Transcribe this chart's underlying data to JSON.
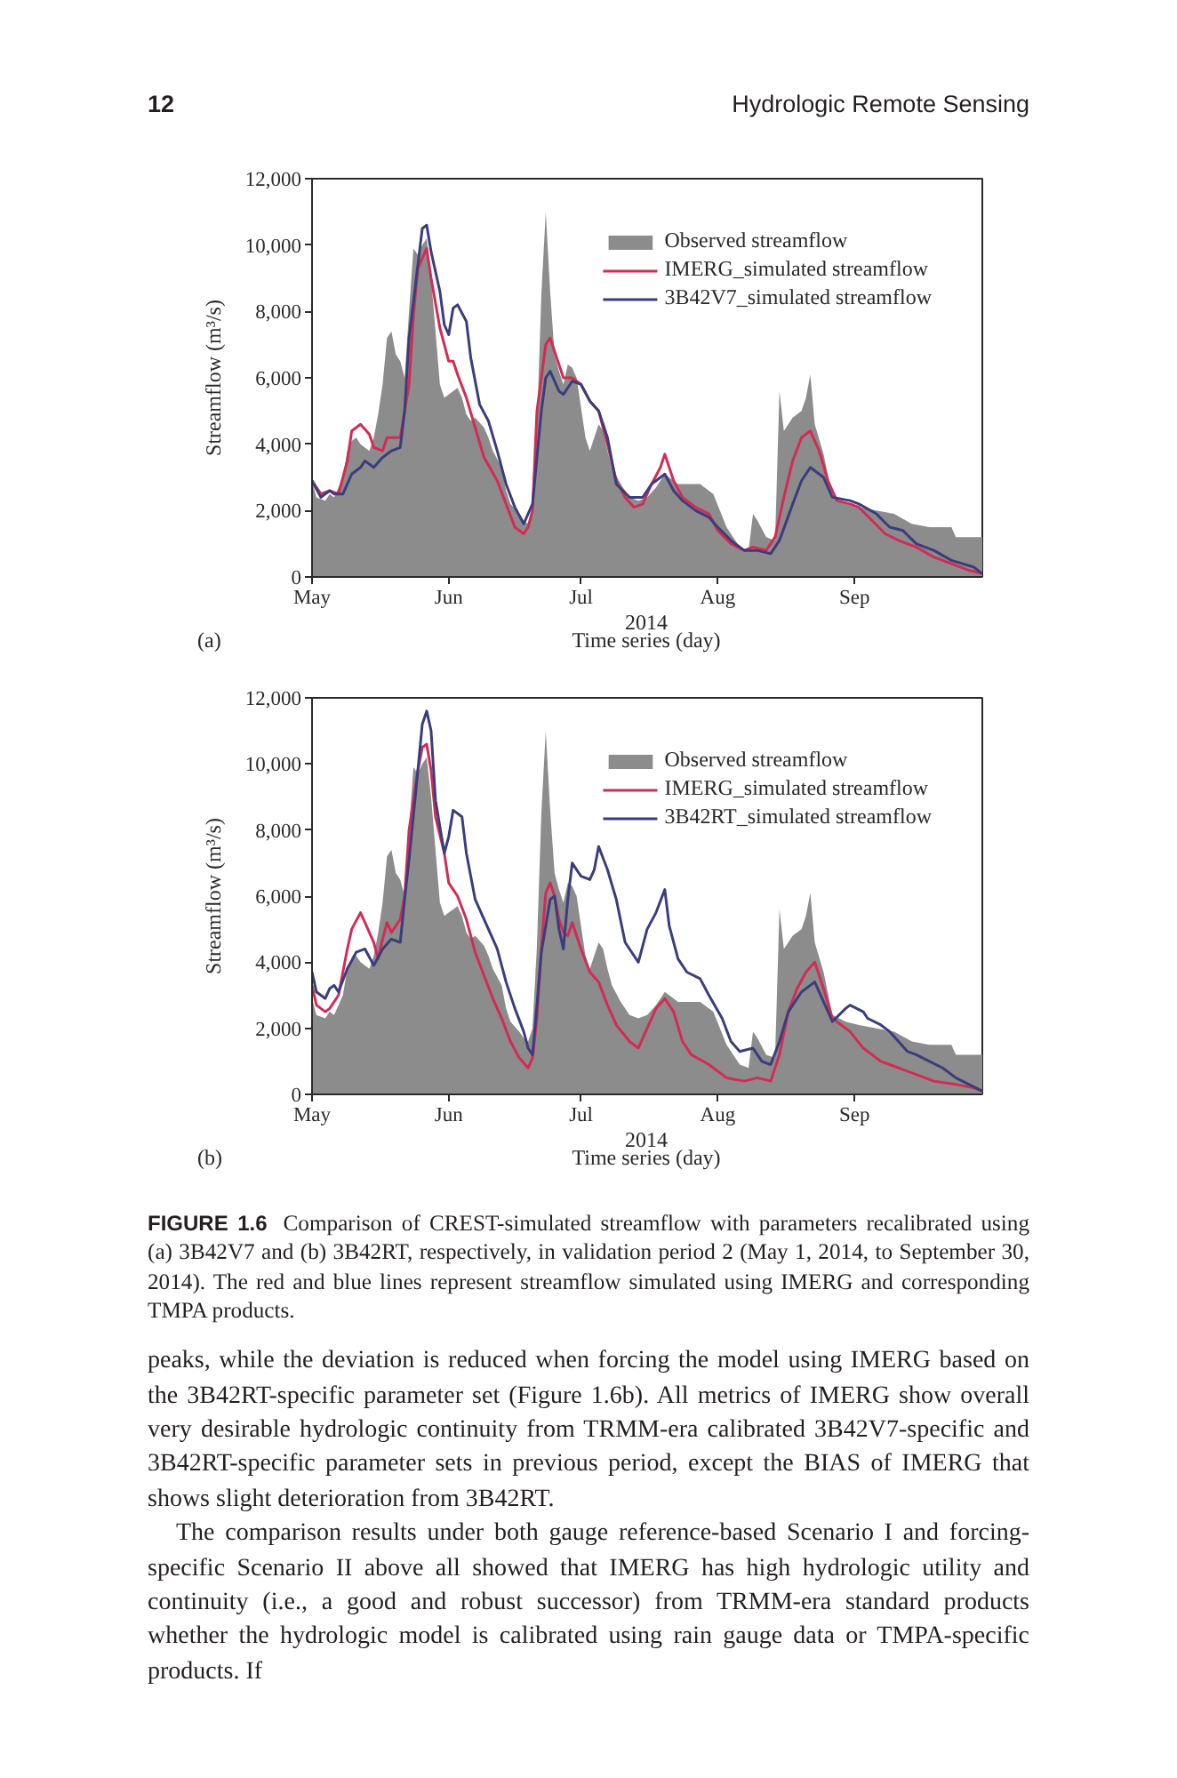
{
  "chart_data": [
    {
      "type": "other",
      "title": "12",
      "subtitle": "Hydrologic Remote Sensing"
    },
    {
      "type": "area",
      "title": "(a)",
      "xlabel": "Time series (day)",
      "ylabel": "Streamflow (m³/s)",
      "annotations": [
        "2014"
      ],
      "xlim": [
        "2014-05-01",
        "2014-09-30"
      ],
      "xticks": [
        {
          "value": "2014-05-01",
          "label": "May"
        },
        {
          "value": "2014-06-01",
          "label": "Jun"
        },
        {
          "value": "2014-07-01",
          "label": "Jul"
        },
        {
          "value": "2014-08-01",
          "label": "Aug"
        },
        {
          "value": "2014-09-01",
          "label": "Sep"
        }
      ],
      "ylim": [
        0,
        12000
      ],
      "yticks": [
        0,
        {
          "value": 2000,
          "label": "2,000"
        },
        {
          "value": 4000,
          "label": "4,000"
        },
        {
          "value": 6000,
          "label": "6,000"
        },
        {
          "value": 8000,
          "label": "8,000"
        },
        {
          "value": 10000,
          "label": "10,000"
        },
        {
          "value": 12000,
          "label": "12,000"
        }
      ],
      "legend": "top right",
      "series": [
        {
          "name": "Observed streamflow",
          "type": "area",
          "color": "#8c8c8c",
          "x": [
            "2014-05-01",
            "2014-05-02",
            "2014-05-04",
            "2014-05-05",
            "2014-05-06",
            "2014-05-08",
            "2014-05-09",
            "2014-05-10",
            "2014-05-11",
            "2014-05-12",
            "2014-05-14",
            "2014-05-15",
            "2014-05-16",
            "2014-05-17",
            "2014-05-18",
            "2014-05-19",
            "2014-05-20",
            "2014-05-21",
            "2014-05-22",
            "2014-05-23",
            "2014-05-24",
            "2014-05-25",
            "2014-05-26",
            "2014-05-27",
            "2014-05-28",
            "2014-05-29",
            "2014-05-30",
            "2014-05-31",
            "2014-06-01",
            "2014-06-03",
            "2014-06-04",
            "2014-06-05",
            "2014-06-06",
            "2014-06-07",
            "2014-06-09",
            "2014-06-10",
            "2014-06-11",
            "2014-06-13",
            "2014-06-14",
            "2014-06-15",
            "2014-06-17",
            "2014-06-18",
            "2014-06-19",
            "2014-06-20",
            "2014-06-21",
            "2014-06-22",
            "2014-06-23",
            "2014-06-24",
            "2014-06-25",
            "2014-06-26",
            "2014-06-27",
            "2014-06-28",
            "2014-06-29",
            "2014-06-30",
            "2014-07-01",
            "2014-07-02",
            "2014-07-03",
            "2014-07-04",
            "2014-07-05",
            "2014-07-06",
            "2014-07-07",
            "2014-07-08",
            "2014-07-10",
            "2014-07-12",
            "2014-07-14",
            "2014-07-16",
            "2014-07-18",
            "2014-07-20",
            "2014-07-23",
            "2014-07-26",
            "2014-07-28",
            "2014-07-31",
            "2014-08-03",
            "2014-08-06",
            "2014-08-08",
            "2014-08-09",
            "2014-08-10",
            "2014-08-12",
            "2014-08-14",
            "2014-08-15",
            "2014-08-16",
            "2014-08-18",
            "2014-08-20",
            "2014-08-21",
            "2014-08-22",
            "2014-08-23",
            "2014-08-25",
            "2014-08-27",
            "2014-08-30",
            "2014-09-02",
            "2014-09-06",
            "2014-09-10",
            "2014-09-14",
            "2014-09-18",
            "2014-09-23",
            "2014-09-24",
            "2014-09-30"
          ],
          "values": [
            2900,
            2400,
            2300,
            2500,
            2400,
            3000,
            3800,
            4100,
            4200,
            4000,
            3800,
            4200,
            4900,
            5800,
            7200,
            7400,
            6700,
            6500,
            6000,
            8000,
            9900,
            9700,
            10000,
            10200,
            9000,
            7400,
            5800,
            5400,
            5500,
            5700,
            5400,
            4900,
            4700,
            4800,
            4500,
            4200,
            3800,
            3300,
            2600,
            2200,
            1900,
            1700,
            1600,
            2000,
            4500,
            8500,
            11000,
            8600,
            6700,
            6200,
            5800,
            6400,
            6300,
            6000,
            5100,
            4200,
            3800,
            4200,
            4600,
            4400,
            3800,
            3300,
            2800,
            2400,
            2300,
            2400,
            2700,
            3100,
            2800,
            2800,
            2800,
            2500,
            1500,
            900,
            800,
            1900,
            1700,
            1200,
            1100,
            5600,
            4400,
            4800,
            5000,
            5400,
            6100,
            4600,
            3700,
            2400,
            2200,
            2100,
            2000,
            1900,
            1600,
            1500,
            1500,
            1200,
            1200
          ]
        },
        {
          "name": "IMERG_simulated streamflow",
          "type": "line",
          "color": "#d42b55",
          "x": [
            "2014-05-01",
            "2014-05-03",
            "2014-05-05",
            "2014-05-07",
            "2014-05-09",
            "2014-05-10",
            "2014-05-12",
            "2014-05-14",
            "2014-05-15",
            "2014-05-17",
            "2014-05-18",
            "2014-05-20",
            "2014-05-21",
            "2014-05-23",
            "2014-05-24",
            "2014-05-25",
            "2014-05-27",
            "2014-05-28",
            "2014-05-30",
            "2014-06-01",
            "2014-06-02",
            "2014-06-03",
            "2014-06-05",
            "2014-06-07",
            "2014-06-09",
            "2014-06-12",
            "2014-06-14",
            "2014-06-16",
            "2014-06-18",
            "2014-06-19",
            "2014-06-20",
            "2014-06-21",
            "2014-06-23",
            "2014-06-24",
            "2014-06-26",
            "2014-06-27",
            "2014-06-29",
            "2014-07-01",
            "2014-07-03",
            "2014-07-05",
            "2014-07-07",
            "2014-07-09",
            "2014-07-11",
            "2014-07-13",
            "2014-07-15",
            "2014-07-17",
            "2014-07-19",
            "2014-07-20",
            "2014-07-22",
            "2014-07-24",
            "2014-07-27",
            "2014-07-30",
            "2014-08-01",
            "2014-08-04",
            "2014-08-07",
            "2014-08-09",
            "2014-08-12",
            "2014-08-14",
            "2014-08-16",
            "2014-08-18",
            "2014-08-20",
            "2014-08-22",
            "2014-08-24",
            "2014-08-26",
            "2014-08-28",
            "2014-08-31",
            "2014-09-02",
            "2014-09-05",
            "2014-09-08",
            "2014-09-11",
            "2014-09-15",
            "2014-09-19",
            "2014-09-23",
            "2014-09-27",
            "2014-09-30"
          ],
          "values": [
            2900,
            2500,
            2600,
            2500,
            3500,
            4400,
            4600,
            4300,
            3900,
            3800,
            4200,
            4200,
            4200,
            5800,
            7900,
            9300,
            9900,
            9000,
            7500,
            6500,
            6500,
            6100,
            5400,
            4500,
            3600,
            2900,
            2200,
            1500,
            1300,
            1500,
            2000,
            5000,
            7000,
            7200,
            6400,
            6000,
            6000,
            5800,
            5300,
            5000,
            4000,
            2900,
            2400,
            2100,
            2200,
            2800,
            3300,
            3700,
            2900,
            2400,
            2100,
            1900,
            1400,
            1000,
            800,
            900,
            800,
            1200,
            2400,
            3500,
            4200,
            4400,
            3800,
            2900,
            2300,
            2200,
            2100,
            1700,
            1300,
            1100,
            900,
            600,
            400,
            200,
            100
          ]
        },
        {
          "name": "3B42V7_simulated streamflow",
          "type": "line",
          "color": "#3b3d7c",
          "x": [
            "2014-05-01",
            "2014-05-03",
            "2014-05-05",
            "2014-05-06",
            "2014-05-08",
            "2014-05-10",
            "2014-05-12",
            "2014-05-13",
            "2014-05-15",
            "2014-05-17",
            "2014-05-19",
            "2014-05-21",
            "2014-05-22",
            "2014-05-23",
            "2014-05-25",
            "2014-05-26",
            "2014-05-27",
            "2014-05-28",
            "2014-05-30",
            "2014-05-31",
            "2014-06-01",
            "2014-06-02",
            "2014-06-03",
            "2014-06-05",
            "2014-06-06",
            "2014-06-08",
            "2014-06-10",
            "2014-06-12",
            "2014-06-14",
            "2014-06-16",
            "2014-06-18",
            "2014-06-20",
            "2014-06-21",
            "2014-06-22",
            "2014-06-23",
            "2014-06-24",
            "2014-06-26",
            "2014-06-27",
            "2014-06-29",
            "2014-07-01",
            "2014-07-03",
            "2014-07-05",
            "2014-07-07",
            "2014-07-09",
            "2014-07-12",
            "2014-07-15",
            "2014-07-17",
            "2014-07-20",
            "2014-07-22",
            "2014-07-24",
            "2014-07-27",
            "2014-07-30",
            "2014-08-01",
            "2014-08-04",
            "2014-08-07",
            "2014-08-10",
            "2014-08-13",
            "2014-08-15",
            "2014-08-18",
            "2014-08-20",
            "2014-08-22",
            "2014-08-25",
            "2014-08-27",
            "2014-08-31",
            "2014-09-02",
            "2014-09-06",
            "2014-09-09",
            "2014-09-12",
            "2014-09-15",
            "2014-09-19",
            "2014-09-23",
            "2014-09-28",
            "2014-09-30"
          ],
          "values": [
            2900,
            2400,
            2600,
            2500,
            2500,
            3100,
            3300,
            3500,
            3300,
            3600,
            3800,
            3900,
            5000,
            7200,
            9400,
            10500,
            10600,
            9800,
            8600,
            7600,
            7300,
            8100,
            8200,
            7700,
            6600,
            5200,
            4700,
            3800,
            2800,
            2100,
            1600,
            2200,
            3600,
            5000,
            6000,
            6200,
            5600,
            5500,
            5900,
            5800,
            5300,
            5000,
            4200,
            2800,
            2400,
            2400,
            2800,
            3100,
            2600,
            2300,
            2000,
            1800,
            1500,
            1100,
            800,
            800,
            700,
            1100,
            2200,
            2900,
            3300,
            3000,
            2400,
            2300,
            2200,
            1900,
            1500,
            1400,
            1000,
            800,
            500,
            300,
            100
          ]
        }
      ]
    },
    {
      "type": "area",
      "title": "(b)",
      "xlabel": "Time series (day)",
      "ylabel": "Streamflow (m³/s)",
      "annotations": [
        "2014"
      ],
      "xlim": [
        "2014-05-01",
        "2014-09-30"
      ],
      "xticks": [
        {
          "value": "2014-05-01",
          "label": "May"
        },
        {
          "value": "2014-06-01",
          "label": "Jun"
        },
        {
          "value": "2014-07-01",
          "label": "Jul"
        },
        {
          "value": "2014-08-01",
          "label": "Aug"
        },
        {
          "value": "2014-09-01",
          "label": "Sep"
        }
      ],
      "ylim": [
        0,
        12000
      ],
      "yticks": [
        0,
        {
          "value": 2000,
          "label": "2,000"
        },
        {
          "value": 4000,
          "label": "4,000"
        },
        {
          "value": 6000,
          "label": "6,000"
        },
        {
          "value": 8000,
          "label": "8,000"
        },
        {
          "value": 10000,
          "label": "10,000"
        },
        {
          "value": 12000,
          "label": "12,000"
        }
      ],
      "legend": "top right",
      "series": [
        {
          "name": "Observed streamflow",
          "type": "area",
          "color": "#8c8c8c",
          "x": [
            "2014-05-01",
            "2014-05-02",
            "2014-05-04",
            "2014-05-05",
            "2014-05-06",
            "2014-05-08",
            "2014-05-09",
            "2014-05-10",
            "2014-05-11",
            "2014-05-12",
            "2014-05-14",
            "2014-05-15",
            "2014-05-16",
            "2014-05-17",
            "2014-05-18",
            "2014-05-19",
            "2014-05-20",
            "2014-05-21",
            "2014-05-22",
            "2014-05-23",
            "2014-05-24",
            "2014-05-25",
            "2014-05-26",
            "2014-05-27",
            "2014-05-28",
            "2014-05-29",
            "2014-05-30",
            "2014-05-31",
            "2014-06-01",
            "2014-06-03",
            "2014-06-04",
            "2014-06-05",
            "2014-06-06",
            "2014-06-07",
            "2014-06-09",
            "2014-06-10",
            "2014-06-11",
            "2014-06-13",
            "2014-06-14",
            "2014-06-15",
            "2014-06-17",
            "2014-06-18",
            "2014-06-19",
            "2014-06-20",
            "2014-06-21",
            "2014-06-22",
            "2014-06-23",
            "2014-06-24",
            "2014-06-25",
            "2014-06-26",
            "2014-06-27",
            "2014-06-28",
            "2014-06-29",
            "2014-06-30",
            "2014-07-01",
            "2014-07-02",
            "2014-07-03",
            "2014-07-04",
            "2014-07-05",
            "2014-07-06",
            "2014-07-07",
            "2014-07-08",
            "2014-07-10",
            "2014-07-12",
            "2014-07-14",
            "2014-07-16",
            "2014-07-18",
            "2014-07-20",
            "2014-07-23",
            "2014-07-26",
            "2014-07-28",
            "2014-07-31",
            "2014-08-03",
            "2014-08-06",
            "2014-08-08",
            "2014-08-09",
            "2014-08-10",
            "2014-08-12",
            "2014-08-14",
            "2014-08-15",
            "2014-08-16",
            "2014-08-18",
            "2014-08-20",
            "2014-08-21",
            "2014-08-22",
            "2014-08-23",
            "2014-08-25",
            "2014-08-27",
            "2014-08-30",
            "2014-09-02",
            "2014-09-06",
            "2014-09-10",
            "2014-09-14",
            "2014-09-18",
            "2014-09-23",
            "2014-09-24",
            "2014-09-30"
          ],
          "values": [
            2900,
            2400,
            2300,
            2500,
            2400,
            3000,
            3800,
            4100,
            4200,
            4000,
            3800,
            4200,
            4900,
            5800,
            7200,
            7400,
            6700,
            6500,
            6000,
            8000,
            9900,
            9700,
            10000,
            10200,
            9000,
            7400,
            5800,
            5400,
            5500,
            5700,
            5400,
            4900,
            4700,
            4800,
            4500,
            4200,
            3800,
            3300,
            2600,
            2200,
            1900,
            1700,
            1600,
            2000,
            4500,
            8500,
            11000,
            8600,
            6700,
            6200,
            5800,
            6400,
            6300,
            6000,
            5100,
            4200,
            3800,
            4200,
            4600,
            4400,
            3800,
            3300,
            2800,
            2400,
            2300,
            2400,
            2700,
            3100,
            2800,
            2800,
            2800,
            2500,
            1500,
            900,
            800,
            1900,
            1700,
            1200,
            1100,
            5600,
            4400,
            4800,
            5000,
            5400,
            6100,
            4600,
            3700,
            2400,
            2200,
            2100,
            2000,
            1900,
            1600,
            1500,
            1500,
            1200,
            1200
          ]
        },
        {
          "name": "IMERG_simulated streamflow",
          "type": "line",
          "color": "#d42b55",
          "x": [
            "2014-05-01",
            "2014-05-02",
            "2014-05-04",
            "2014-05-05",
            "2014-05-07",
            "2014-05-09",
            "2014-05-10",
            "2014-05-12",
            "2014-05-13",
            "2014-05-15",
            "2014-05-16",
            "2014-05-17",
            "2014-05-18",
            "2014-05-19",
            "2014-05-21",
            "2014-05-22",
            "2014-05-23",
            "2014-05-25",
            "2014-05-26",
            "2014-05-27",
            "2014-05-28",
            "2014-05-29",
            "2014-05-31",
            "2014-06-01",
            "2014-06-02",
            "2014-06-03",
            "2014-06-05",
            "2014-06-07",
            "2014-06-09",
            "2014-06-11",
            "2014-06-13",
            "2014-06-15",
            "2014-06-17",
            "2014-06-19",
            "2014-06-20",
            "2014-06-21",
            "2014-06-22",
            "2014-06-23",
            "2014-06-24",
            "2014-06-25",
            "2014-06-26",
            "2014-06-27",
            "2014-06-28",
            "2014-06-29",
            "2014-07-01",
            "2014-07-03",
            "2014-07-05",
            "2014-07-07",
            "2014-07-09",
            "2014-07-12",
            "2014-07-14",
            "2014-07-16",
            "2014-07-18",
            "2014-07-20",
            "2014-07-22",
            "2014-07-24",
            "2014-07-26",
            "2014-07-30",
            "2014-08-03",
            "2014-08-07",
            "2014-08-10",
            "2014-08-13",
            "2014-08-15",
            "2014-08-17",
            "2014-08-19",
            "2014-08-21",
            "2014-08-23",
            "2014-08-25",
            "2014-08-27",
            "2014-08-29",
            "2014-08-31",
            "2014-09-03",
            "2014-09-07",
            "2014-09-11",
            "2014-09-15",
            "2014-09-19",
            "2014-09-24",
            "2014-09-28",
            "2014-09-30"
          ],
          "values": [
            3300,
            2700,
            2500,
            2600,
            3000,
            4400,
            5000,
            5500,
            5200,
            4600,
            4100,
            4700,
            5200,
            4900,
            5300,
            6000,
            8000,
            9800,
            10500,
            10600,
            9800,
            8400,
            7300,
            6400,
            6200,
            6000,
            5300,
            4300,
            3600,
            2900,
            2300,
            1600,
            1100,
            800,
            1100,
            2300,
            4400,
            6100,
            6400,
            6000,
            5300,
            4900,
            4800,
            5200,
            4400,
            3700,
            3400,
            2700,
            2100,
            1600,
            1400,
            2000,
            2600,
            2900,
            2500,
            1600,
            1200,
            900,
            500,
            400,
            500,
            400,
            1200,
            2500,
            3200,
            3700,
            4000,
            3200,
            2300,
            2100,
            1900,
            1400,
            1000,
            800,
            600,
            400,
            300,
            200,
            100
          ]
        },
        {
          "name": "3B42RT_simulated streamflow",
          "type": "line",
          "color": "#3b3d7c",
          "x": [
            "2014-05-01",
            "2014-05-02",
            "2014-05-04",
            "2014-05-05",
            "2014-05-06",
            "2014-05-07",
            "2014-05-09",
            "2014-05-11",
            "2014-05-13",
            "2014-05-15",
            "2014-05-17",
            "2014-05-19",
            "2014-05-21",
            "2014-05-22",
            "2014-05-23",
            "2014-05-25",
            "2014-05-26",
            "2014-05-27",
            "2014-05-28",
            "2014-05-29",
            "2014-05-31",
            "2014-06-01",
            "2014-06-02",
            "2014-06-04",
            "2014-06-05",
            "2014-06-07",
            "2014-06-10",
            "2014-06-12",
            "2014-06-14",
            "2014-06-16",
            "2014-06-18",
            "2014-06-19",
            "2014-06-20",
            "2014-06-21",
            "2014-06-22",
            "2014-06-24",
            "2014-06-25",
            "2014-06-26",
            "2014-06-27",
            "2014-06-28",
            "2014-06-29",
            "2014-07-01",
            "2014-07-03",
            "2014-07-04",
            "2014-07-05",
            "2014-07-07",
            "2014-07-09",
            "2014-07-11",
            "2014-07-12",
            "2014-07-14",
            "2014-07-16",
            "2014-07-18",
            "2014-07-20",
            "2014-07-21",
            "2014-07-23",
            "2014-07-25",
            "2014-07-28",
            "2014-07-30",
            "2014-08-02",
            "2014-08-04",
            "2014-08-06",
            "2014-08-09",
            "2014-08-11",
            "2014-08-13",
            "2014-08-15",
            "2014-08-17",
            "2014-08-20",
            "2014-08-23",
            "2014-08-25",
            "2014-08-27",
            "2014-08-30",
            "2014-08-31",
            "2014-09-03",
            "2014-09-04",
            "2014-09-07",
            "2014-09-09",
            "2014-09-11",
            "2014-09-13",
            "2014-09-15",
            "2014-09-18",
            "2014-09-21",
            "2014-09-24",
            "2014-09-27",
            "2014-09-30"
          ],
          "values": [
            3700,
            3100,
            2900,
            3200,
            3300,
            3100,
            3800,
            4300,
            4400,
            3900,
            4400,
            4700,
            4600,
            5900,
            7100,
            9800,
            11200,
            11600,
            11000,
            8900,
            7300,
            7800,
            8600,
            8400,
            7300,
            5900,
            5000,
            4400,
            3400,
            2600,
            1900,
            1400,
            1200,
            2700,
            4300,
            5900,
            6000,
            5000,
            4400,
            5900,
            7000,
            6600,
            6500,
            6800,
            7500,
            6800,
            5900,
            4600,
            4400,
            4000,
            5000,
            5500,
            6200,
            5100,
            4100,
            3700,
            3500,
            3000,
            2300,
            1600,
            1300,
            1400,
            1000,
            900,
            1600,
            2500,
            3100,
            3400,
            2800,
            2200,
            2600,
            2700,
            2500,
            2300,
            2100,
            1900,
            1600,
            1300,
            1200,
            1000,
            800,
            500,
            300,
            100
          ]
        }
      ]
    },
    {
      "type": "other",
      "title": "FIGURE 1.6",
      "subtitle": "Comparison of CREST-simulated streamflow with parameters recalibrated using (a) 3B42V7 and (b) 3B42RT, respectively, in validation period 2 (May 1, 2014, to September 30, 2014). The red and blue lines represent streamflow simulated using IMERG and corresponding TMPA products.",
      "annotations": [
        "peaks, while the deviation is reduced when forcing the model using IMERG based on the 3B42RT-specific parameter set (Figure 1.6b). All metrics of IMERG show overall very desirable hydrologic continuity from TRMM-era calibrated 3B42V7-specific and 3B42RT-specific parameter sets in previous period, except the BIAS of IMERG that shows slight deterioration from 3B42RT.",
        "The comparison results under both gauge reference-based Scenario I and forcing-specific Scenario II above all showed that IMERG has high hydrologic utility and continuity (i.e., a good and robust successor) from TRMM-era standard products whether the hydrologic model is calibrated using rain gauge data or TMPA-specific products. If"
      ]
    }
  ]
}
